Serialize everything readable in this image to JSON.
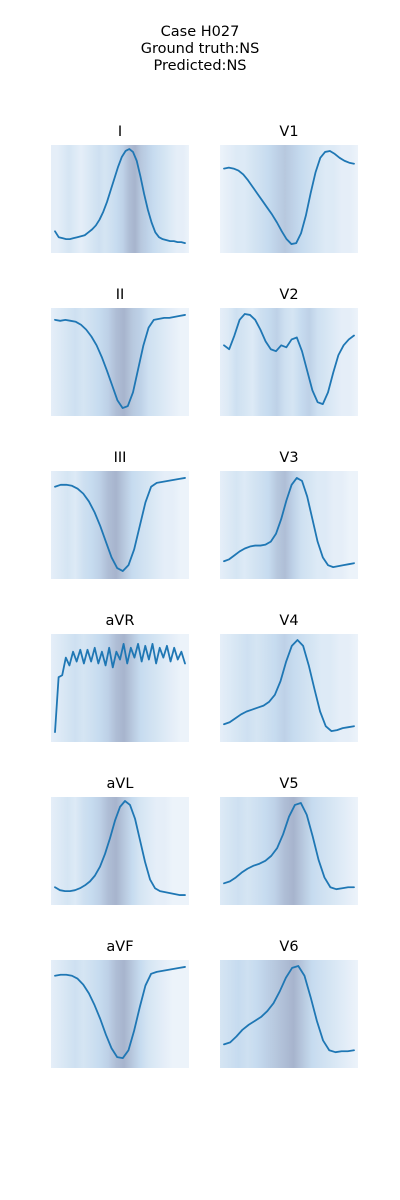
{
  "header": {
    "case": "Case H027",
    "ground_truth": "Ground truth:NS",
    "predicted": "Predicted:NS"
  },
  "colors": {
    "line": "#1f77b4",
    "saliency_low": "#f4f8fc",
    "saliency_mid": "#c6dbef",
    "saliency_high": "#a7b4cd"
  },
  "chart_data": {
    "type": "line",
    "layout": "6x2 grid of 12-lead ECG panels with saliency background",
    "axes": "off",
    "leads": [
      {
        "name": "I",
        "y": [
          0.16,
          0.1,
          0.09,
          0.08,
          0.08,
          0.09,
          0.1,
          0.11,
          0.12,
          0.15,
          0.18,
          0.22,
          0.28,
          0.36,
          0.46,
          0.58,
          0.7,
          0.82,
          0.92,
          0.98,
          1.0,
          0.97,
          0.88,
          0.72,
          0.54,
          0.38,
          0.25,
          0.15,
          0.1,
          0.08,
          0.07,
          0.06,
          0.06,
          0.05,
          0.05,
          0.04
        ],
        "saliency": [
          0.2,
          0.2,
          0.3,
          0.4,
          0.3,
          0.2,
          0.3,
          0.4,
          0.5,
          0.4,
          0.5,
          0.6,
          0.7,
          0.9,
          1.0,
          0.8,
          0.7,
          0.6,
          0.5,
          0.4,
          0.3,
          0.2,
          0.2,
          0.1
        ]
      },
      {
        "name": "V1",
        "y": [
          0.8,
          0.81,
          0.8,
          0.78,
          0.74,
          0.68,
          0.61,
          0.54,
          0.47,
          0.4,
          0.33,
          0.25,
          0.16,
          0.08,
          0.03,
          0.04,
          0.14,
          0.32,
          0.55,
          0.76,
          0.91,
          0.97,
          0.98,
          0.95,
          0.91,
          0.88,
          0.86,
          0.85
        ],
        "saliency": [
          0.1,
          0.2,
          0.3,
          0.3,
          0.4,
          0.5,
          0.6,
          0.7,
          0.8,
          0.7,
          0.6,
          0.5,
          0.4,
          0.3,
          0.3,
          0.2,
          0.2,
          0.1
        ]
      },
      {
        "name": "II",
        "y": [
          0.92,
          0.91,
          0.92,
          0.91,
          0.9,
          0.87,
          0.82,
          0.75,
          0.66,
          0.54,
          0.4,
          0.25,
          0.1,
          0.02,
          0.04,
          0.18,
          0.42,
          0.66,
          0.84,
          0.92,
          0.93,
          0.94,
          0.94,
          0.95,
          0.96,
          0.97
        ],
        "saliency": [
          0.2,
          0.3,
          0.4,
          0.5,
          0.4,
          0.5,
          0.6,
          0.7,
          0.9,
          1.0,
          0.8,
          0.7,
          0.5,
          0.4,
          0.3,
          0.2,
          0.1,
          0.1
        ]
      },
      {
        "name": "V2",
        "y": [
          0.66,
          0.62,
          0.76,
          0.92,
          0.98,
          0.97,
          0.92,
          0.82,
          0.7,
          0.62,
          0.6,
          0.66,
          0.64,
          0.72,
          0.74,
          0.6,
          0.4,
          0.2,
          0.08,
          0.06,
          0.18,
          0.38,
          0.56,
          0.66,
          0.72,
          0.76
        ],
        "saliency": [
          0.2,
          0.3,
          0.5,
          0.4,
          0.3,
          0.5,
          0.6,
          0.7,
          0.5,
          0.4,
          0.6,
          0.7,
          0.5,
          0.4,
          0.3,
          0.2,
          0.2,
          0.1
        ]
      },
      {
        "name": "III",
        "y": [
          0.88,
          0.9,
          0.9,
          0.89,
          0.86,
          0.81,
          0.73,
          0.62,
          0.48,
          0.32,
          0.16,
          0.05,
          0.02,
          0.08,
          0.24,
          0.48,
          0.72,
          0.88,
          0.92,
          0.93,
          0.94,
          0.95,
          0.96,
          0.97
        ],
        "saliency": [
          0.2,
          0.3,
          0.4,
          0.3,
          0.5,
          0.6,
          0.7,
          0.9,
          1.0,
          0.8,
          0.6,
          0.5,
          0.4,
          0.3,
          0.2,
          0.2,
          0.1,
          0.1
        ]
      },
      {
        "name": "V3",
        "y": [
          0.12,
          0.14,
          0.18,
          0.22,
          0.25,
          0.27,
          0.28,
          0.28,
          0.29,
          0.32,
          0.4,
          0.55,
          0.74,
          0.9,
          0.97,
          0.94,
          0.78,
          0.55,
          0.32,
          0.16,
          0.08,
          0.06,
          0.07,
          0.08,
          0.09,
          0.1
        ],
        "saliency": [
          0.2,
          0.3,
          0.4,
          0.3,
          0.4,
          0.5,
          0.6,
          0.8,
          0.9,
          0.7,
          0.5,
          0.4,
          0.3,
          0.3,
          0.2,
          0.2,
          0.1,
          0.1
        ]
      },
      {
        "name": "aVR",
        "y": [
          0.04,
          0.6,
          0.62,
          0.8,
          0.72,
          0.86,
          0.76,
          0.88,
          0.74,
          0.88,
          0.76,
          0.9,
          0.74,
          0.86,
          0.72,
          0.9,
          0.7,
          0.86,
          0.78,
          0.94,
          0.74,
          0.9,
          0.8,
          0.94,
          0.76,
          0.92,
          0.78,
          0.94,
          0.74,
          0.9,
          0.8,
          0.92,
          0.76,
          0.9,
          0.78,
          0.86,
          0.74
        ],
        "saliency": [
          0.2,
          0.3,
          0.4,
          0.5,
          0.4,
          0.5,
          0.6,
          0.7,
          0.9,
          1.0,
          0.8,
          0.6,
          0.5,
          0.4,
          0.3,
          0.2,
          0.1,
          0.1
        ]
      },
      {
        "name": "V4",
        "y": [
          0.12,
          0.14,
          0.18,
          0.22,
          0.25,
          0.27,
          0.29,
          0.31,
          0.35,
          0.42,
          0.56,
          0.76,
          0.92,
          0.98,
          0.92,
          0.72,
          0.48,
          0.25,
          0.1,
          0.05,
          0.06,
          0.08,
          0.09,
          0.1
        ],
        "saliency": [
          0.2,
          0.3,
          0.4,
          0.5,
          0.4,
          0.5,
          0.6,
          0.7,
          0.6,
          0.5,
          0.4,
          0.3,
          0.3,
          0.2,
          0.2,
          0.1
        ]
      },
      {
        "name": "aVL",
        "y": [
          0.12,
          0.09,
          0.08,
          0.08,
          0.09,
          0.11,
          0.14,
          0.18,
          0.24,
          0.33,
          0.46,
          0.62,
          0.8,
          0.94,
          1.0,
          0.96,
          0.82,
          0.6,
          0.38,
          0.2,
          0.11,
          0.08,
          0.07,
          0.06,
          0.05,
          0.04,
          0.04
        ],
        "saliency": [
          0.2,
          0.3,
          0.4,
          0.3,
          0.5,
          0.6,
          0.7,
          0.9,
          1.0,
          0.8,
          0.6,
          0.4,
          0.3,
          0.2,
          0.2,
          0.1,
          0.1,
          0.1
        ]
      },
      {
        "name": "V5",
        "y": [
          0.16,
          0.18,
          0.22,
          0.27,
          0.31,
          0.34,
          0.36,
          0.39,
          0.44,
          0.52,
          0.66,
          0.84,
          0.96,
          0.98,
          0.86,
          0.64,
          0.4,
          0.22,
          0.12,
          0.1,
          0.11,
          0.12,
          0.12
        ],
        "saliency": [
          0.3,
          0.4,
          0.5,
          0.4,
          0.5,
          0.6,
          0.7,
          0.9,
          1.0,
          0.8,
          0.6,
          0.5,
          0.4,
          0.3,
          0.2,
          0.1
        ]
      },
      {
        "name": "aVF",
        "y": [
          0.88,
          0.89,
          0.89,
          0.88,
          0.85,
          0.79,
          0.7,
          0.58,
          0.44,
          0.28,
          0.14,
          0.05,
          0.04,
          0.12,
          0.32,
          0.56,
          0.78,
          0.9,
          0.92,
          0.93,
          0.94,
          0.95,
          0.96,
          0.97
        ],
        "saliency": [
          0.2,
          0.3,
          0.4,
          0.5,
          0.4,
          0.5,
          0.6,
          0.7,
          0.9,
          1.0,
          0.8,
          0.6,
          0.4,
          0.3,
          0.2,
          0.1,
          0.1,
          0.1
        ]
      },
      {
        "name": "V6",
        "y": [
          0.18,
          0.2,
          0.26,
          0.33,
          0.38,
          0.42,
          0.46,
          0.52,
          0.6,
          0.72,
          0.86,
          0.96,
          0.98,
          0.88,
          0.66,
          0.42,
          0.22,
          0.12,
          0.1,
          0.11,
          0.11,
          0.12
        ],
        "saliency": [
          0.4,
          0.5,
          0.6,
          0.5,
          0.6,
          0.7,
          0.8,
          0.9,
          1.0,
          0.8,
          0.6,
          0.5,
          0.4,
          0.3,
          0.2,
          0.1
        ]
      }
    ]
  }
}
